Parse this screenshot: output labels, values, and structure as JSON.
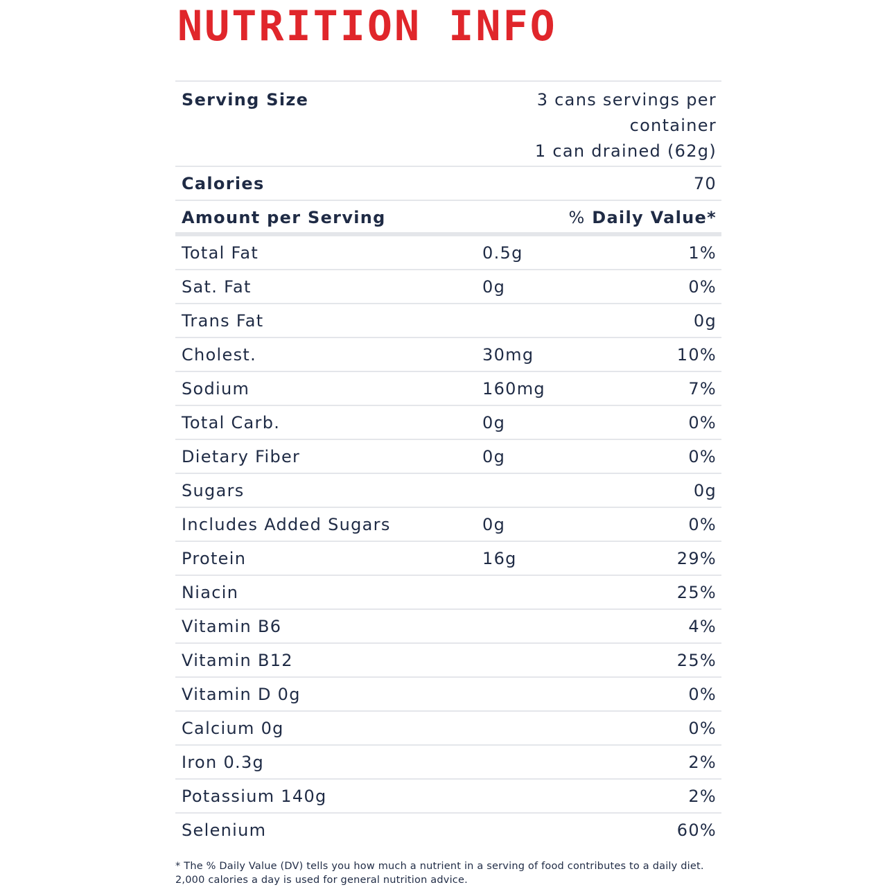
{
  "title": "NUTRITION INFO",
  "serving": {
    "label": "Serving Size",
    "value_line1": "3 cans servings per",
    "value_line2": "container",
    "value_line3": "1 can drained (62g)"
  },
  "calories": {
    "label": "Calories",
    "value": "70"
  },
  "header": {
    "label": "Amount per Serving",
    "dv_prefix": "%",
    "dv_label": "Daily Value*"
  },
  "nutrients": [
    {
      "label": "Total Fat",
      "amount": "0.5g",
      "dv": "1%"
    },
    {
      "label": "Sat. Fat",
      "amount": "0g",
      "dv": "0%"
    },
    {
      "label": "Trans Fat",
      "amount": "",
      "dv": "0g"
    },
    {
      "label": "Cholest.",
      "amount": "30mg",
      "dv": "10%"
    },
    {
      "label": "Sodium",
      "amount": "160mg",
      "dv": "7%"
    },
    {
      "label": "Total Carb.",
      "amount": "0g",
      "dv": "0%"
    },
    {
      "label": "Dietary Fiber",
      "amount": "0g",
      "dv": "0%"
    },
    {
      "label": "Sugars",
      "amount": "",
      "dv": "0g"
    },
    {
      "label": "Includes Added Sugars",
      "amount": "0g",
      "dv": "0%"
    },
    {
      "label": "Protein",
      "amount": "16g",
      "dv": "29%"
    },
    {
      "label": "Niacin",
      "amount": "",
      "dv": "25%"
    },
    {
      "label": "Vitamin B6",
      "amount": "",
      "dv": "4%"
    },
    {
      "label": "Vitamin B12",
      "amount": "",
      "dv": "25%"
    },
    {
      "label": "Vitamin D 0g",
      "amount": "",
      "dv": "0%"
    },
    {
      "label": "Calcium 0g",
      "amount": "",
      "dv": "0%"
    },
    {
      "label": "Iron 0.3g",
      "amount": "",
      "dv": "2%"
    },
    {
      "label": "Potassium 140g",
      "amount": "",
      "dv": "2%"
    },
    {
      "label": "Selenium",
      "amount": "",
      "dv": "60%"
    }
  ],
  "footnote": "* The % Daily Value (DV) tells you how much a nutrient in a serving of food contributes to a daily diet. 2,000 calories a day is used for general nutrition advice.",
  "colors": {
    "title": "#e0262b",
    "text": "#1f2b45",
    "rule": "#e4e6ea"
  }
}
